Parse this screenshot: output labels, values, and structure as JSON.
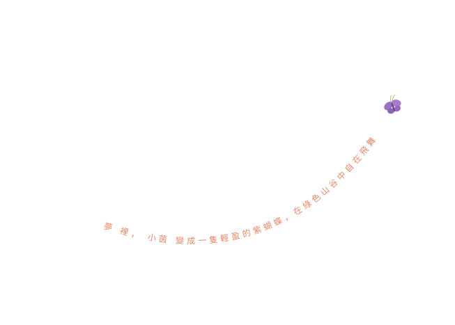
{
  "caption": {
    "text": "夢 裡， 小茵 變成一隻輕盈的紫蝴蝶，在綠色山谷中自在飛舞"
  }
}
